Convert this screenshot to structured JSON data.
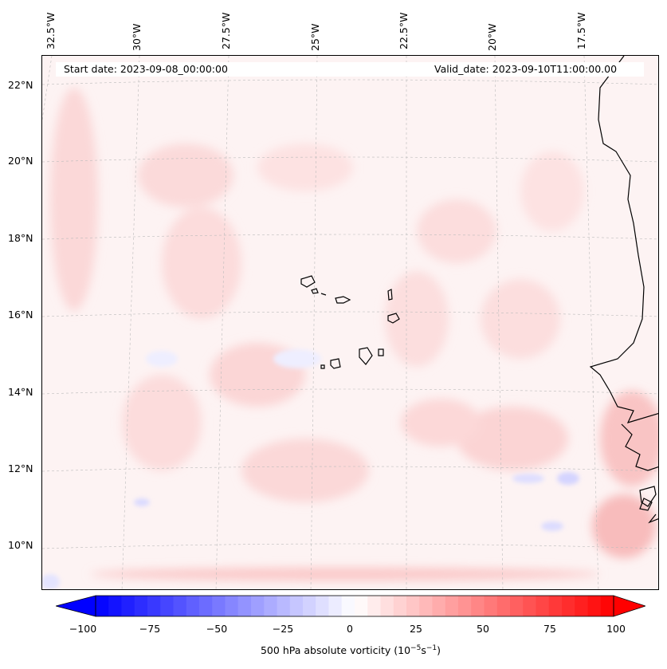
{
  "header": {
    "start_date": "Start date: 2023-09-08_00:00:00",
    "valid_date": "Valid_date: 2023-09-10T11:00:00.00"
  },
  "map": {
    "lon_labels": [
      "32.5°W",
      "30°W",
      "27.5°W",
      "25°W",
      "22.5°W",
      "20°W",
      "17.5°W"
    ],
    "lat_labels": [
      "22°N",
      "20°N",
      "18°N",
      "16°N",
      "14°N",
      "12°N",
      "10°N"
    ],
    "gridlines": true,
    "coastline_color": "#000000",
    "field": "500 hPa absolute vorticity"
  },
  "colorbar": {
    "ticks": [
      "−100",
      "−75",
      "−50",
      "−25",
      "0",
      "25",
      "50",
      "75",
      "100"
    ],
    "min": -100,
    "max": 100,
    "label": "500 hPa absolute vorticity (10",
    "label_exp1": "−5",
    "label_mid": "s",
    "label_exp2": "−1",
    "label_end": ")",
    "colormap": "bwr",
    "low_color": "#0000ff",
    "mid_color": "#ffffff",
    "high_color": "#ff0000",
    "extend": "both"
  }
}
